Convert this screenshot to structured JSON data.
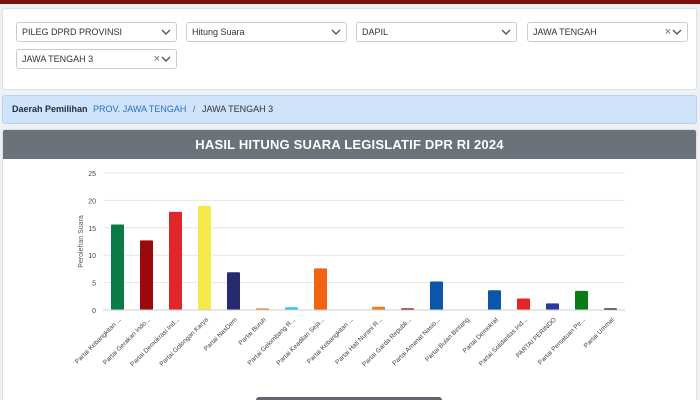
{
  "filters": [
    {
      "value": "PILEG DPRD PROVINSI",
      "clearable": false
    },
    {
      "value": "Hitung Suara",
      "clearable": false
    },
    {
      "value": "DAPIL",
      "clearable": false
    },
    {
      "value": "JAWA TENGAH",
      "clearable": true
    },
    {
      "value": "JAWA TENGAH 3",
      "clearable": true
    }
  ],
  "breadcrumb": {
    "label": "Daerah Pemilihan",
    "link": "PROV. JAWA TENGAH",
    "separator": "/",
    "current": "JAWA TENGAH 3"
  },
  "chart_title": "HASIL HITUNG SUARA LEGISLATIF DPR RI 2024",
  "icons": {
    "dropdown": "chevron-down-icon",
    "clear": "close-icon"
  },
  "colors": {
    "topbar": "#7a1010",
    "header": "#6b7279",
    "link": "#2a6fc9"
  },
  "chart_data": {
    "type": "bar",
    "title": "HASIL HITUNG SUARA LEGISLATIF DPR RI 2024",
    "ylabel": "Perolehan Suara",
    "xlabel": "",
    "ylim": [
      0,
      25
    ],
    "yticks": [
      0,
      5,
      10,
      15,
      20,
      25
    ],
    "grid": true,
    "categories": [
      "Partai Kebangkitan ...",
      "Partai Gerakan Indo...",
      "Partai Demokrasi Ind...",
      "Partai Golongan Karya",
      "Partai NasDem",
      "Partai Buruh",
      "Partai Gelombang R...",
      "Partai Keadilan Seja...",
      "Partai Kebangkitan ...",
      "Partai Hati Nurani R...",
      "Partai Garda Republi...",
      "Partai Amanat Nasio...",
      "Partai Bulan Bintang",
      "Partai Demokrat",
      "Partai Solidaritas Ind...",
      "PARTAI PERINDO",
      "Partai Persatuan Pe...",
      "Partai Ummat"
    ],
    "values": [
      15.6,
      12.7,
      17.9,
      19.0,
      6.9,
      0.3,
      0.5,
      7.6,
      0,
      0.6,
      0.3,
      5.2,
      0,
      3.6,
      2.1,
      1.2,
      3.5,
      0.3
    ],
    "colors": [
      "#0a7a46",
      "#9b0a0a",
      "#e0262a",
      "#f6e84a",
      "#262a6e",
      "#f07a1a",
      "#2ec8e8",
      "#f26412",
      "#1b7a3a",
      "#f07a1a",
      "#7a0a0a",
      "#0a56a8",
      "#1b7a3a",
      "#0a56a8",
      "#e0262a",
      "#2a3a9e",
      "#0a7a1a",
      "#111111"
    ]
  }
}
